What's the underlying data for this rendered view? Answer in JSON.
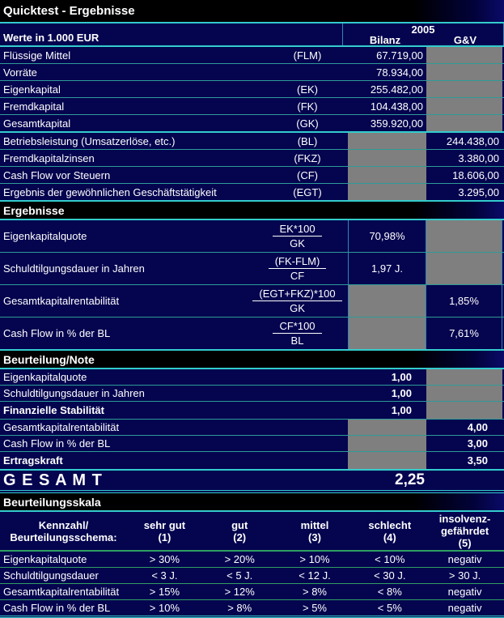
{
  "title": "Quicktest - Ergebnisse",
  "header": {
    "year": "2005",
    "left_label": "Werte in 1.000 EUR",
    "col_bilanz": "Bilanz",
    "col_gv": "G&V"
  },
  "colors": {
    "background": "#05044F",
    "separator_teal": "#2E9B97",
    "separator_green": "#2F9E62",
    "border_cyan": "#33CCCC",
    "disabled_gray": "#7F7F7F"
  },
  "input_rows": [
    {
      "label": "Flüssige Mittel",
      "code": "(FLM)",
      "bilanz": "67.719,00",
      "gv": ""
    },
    {
      "label": "Vorräte",
      "code": "",
      "bilanz": "78.934,00",
      "gv": ""
    },
    {
      "label": "Eigenkapital",
      "code": "(EK)",
      "bilanz": "255.482,00",
      "gv": ""
    },
    {
      "label": "Fremdkapital",
      "code": "(FK)",
      "bilanz": "104.438,00",
      "gv": ""
    },
    {
      "label": "Gesamtkapital",
      "code": "(GK)",
      "bilanz": "359.920,00",
      "gv": ""
    },
    {
      "label": "Betriebsleistung (Umsatzerlöse, etc.)",
      "code": "(BL)",
      "bilanz": "",
      "gv": "244.438,00"
    },
    {
      "label": "Fremdkapitalzinsen",
      "code": "(FKZ)",
      "bilanz": "",
      "gv": "3.380,00"
    },
    {
      "label": "Cash Flow vor Steuern",
      "code": "(CF)",
      "bilanz": "",
      "gv": "18.606,00"
    },
    {
      "label": "Ergebnis der gewöhnlichen Geschäftstätigkeit",
      "code": "(EGT)",
      "bilanz": "",
      "gv": "3.295,00"
    }
  ],
  "section_ergebnisse": "Ergebnisse",
  "ratio_rows": [
    {
      "label": "Eigenkapitalquote",
      "formula_num": "EK*100",
      "formula_den": "GK",
      "bilanz": "70,98%",
      "gv": ""
    },
    {
      "label": "Schuldtilgungsdauer in Jahren",
      "formula_num": "(FK-FLM)",
      "formula_den": "CF",
      "bilanz": "1,97 J.",
      "gv": ""
    },
    {
      "label": "Gesamtkapitalrentabilität",
      "formula_num": "(EGT+FKZ)*100",
      "formula_den": "GK",
      "bilanz": "",
      "gv": "1,85%"
    },
    {
      "label": "Cash Flow in % der BL",
      "formula_num": "CF*100",
      "formula_den": "BL",
      "bilanz": "",
      "gv": "7,61%"
    }
  ],
  "section_beurteilung": "Beurteilung/Note",
  "note_rows": [
    {
      "label": "Eigenkapitalquote",
      "bilanz": "1,00",
      "gv": ""
    },
    {
      "label": "Schuldtilgungsdauer in Jahren",
      "bilanz": "1,00",
      "gv": ""
    },
    {
      "label": "Finanzielle Stabilität",
      "bilanz": "1,00",
      "gv": ""
    },
    {
      "label": "Gesamtkapitalrentabilität",
      "bilanz": "",
      "gv": "4,00"
    },
    {
      "label": "Cash Flow in % der BL",
      "bilanz": "",
      "gv": "3,00"
    },
    {
      "label": "Ertragskraft",
      "bilanz": "",
      "gv": "3,50"
    }
  ],
  "gesamt": {
    "label": "G E S A M T",
    "value": "2,25"
  },
  "section_skala": "Beurteilungsskala",
  "skala": {
    "header_label": "Kennzahl/\nBeurteilungsschema:",
    "cols": [
      "sehr gut\n(1)",
      "gut\n(2)",
      "mittel\n(3)",
      "schlecht\n(4)",
      "insolvenz-\ngefährdet\n(5)"
    ],
    "rows": [
      {
        "label": "Eigenkapitalquote",
        "v1": "> 30%",
        "v2": "> 20%",
        "v3": "> 10%",
        "v4": "< 10%",
        "v5": "negativ"
      },
      {
        "label": "Schuldtilgungsdauer",
        "v1": "< 3 J.",
        "v2": "< 5 J.",
        "v3": "< 12 J.",
        "v4": "< 30 J.",
        "v5": "> 30 J."
      },
      {
        "label": "Gesamtkapitalrentabilität",
        "v1": "> 15%",
        "v2": "> 12%",
        "v3": "> 8%",
        "v4": "< 8%",
        "v5": "negativ"
      },
      {
        "label": "Cash Flow in % der BL",
        "v1": "> 10%",
        "v2": "> 8%",
        "v3": "> 5%",
        "v4": "< 5%",
        "v5": "negativ"
      }
    ]
  }
}
